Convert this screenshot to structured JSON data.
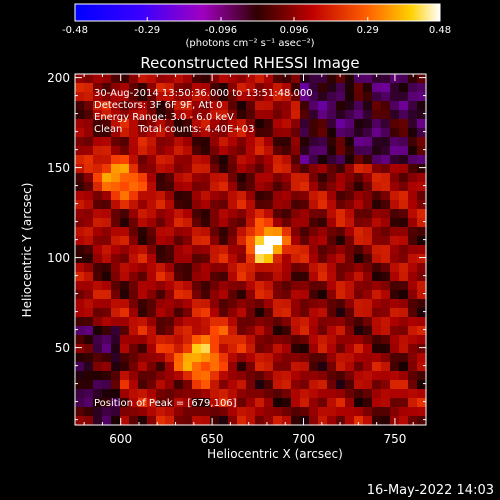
{
  "chart_data": {
    "type": "heatmap",
    "title": "Reconstructed RHESSI Image",
    "xlabel": "Heliocentric X (arcsec)",
    "ylabel": "Heliocentric Y (arcsec)",
    "xlim": [
      575,
      767
    ],
    "ylim": [
      7,
      202
    ],
    "xticks": [
      "600",
      "650",
      "700",
      "750"
    ],
    "yticks": [
      "50",
      "100",
      "150",
      "200"
    ],
    "xtick_values": [
      600,
      650,
      700,
      750
    ],
    "ytick_values": [
      50,
      100,
      150,
      200
    ],
    "colorbar": {
      "label": "(photons cm⁻² s⁻¹ asec⁻²)",
      "ticks": [
        "-0.48",
        "-0.29",
        "-0.096",
        "0.096",
        "0.29",
        "0.48"
      ],
      "tick_values": [
        -0.48,
        -0.29,
        -0.096,
        0.096,
        0.29,
        0.48
      ],
      "range": [
        -0.48,
        0.48
      ]
    },
    "annotations": [
      "30-Aug-2014 13:50:36.000 to 13:51:48.000",
      "Detectors: 3F 6F 9F, Att 0",
      "Energy Range: 3.0 - 6.0 keV",
      "Clean     Total counts: 4.40E+03"
    ],
    "peak_text": "Position of Peak = [679,106]",
    "peak": {
      "x": 679,
      "y": 106,
      "value": 0.48
    },
    "secondary_sources": [
      {
        "x": 645,
        "y": 47,
        "value": 0.3
      },
      {
        "x": 600,
        "y": 145,
        "value": 0.22
      }
    ]
  },
  "footer": {
    "date": "16-May-2022 14:03"
  }
}
